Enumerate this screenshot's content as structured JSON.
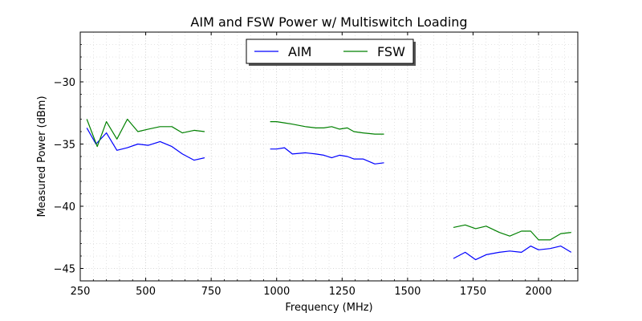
{
  "chart_data": {
    "type": "line",
    "title": "AIM and FSW Power w/ Multiswitch Loading",
    "xlabel": "Frequency (MHz)",
    "ylabel": "Measured Power (dBm)",
    "xlim": [
      250,
      2150
    ],
    "ylim": [
      -46,
      -26
    ],
    "xticks": [
      250,
      500,
      750,
      1000,
      1250,
      1500,
      1750,
      2000
    ],
    "xtick_labels": [
      "250",
      "500",
      "750",
      "1000",
      "1250",
      "1500",
      "1750",
      "2000"
    ],
    "yticks": [
      -45,
      -40,
      -35,
      -30
    ],
    "ytick_labels": [
      "−45",
      "−40",
      "−35",
      "−30"
    ],
    "grid": true,
    "legend_position": "top-center",
    "series": [
      {
        "name": "AIM",
        "color": "#0000ff",
        "segments": [
          {
            "x": [
              275,
              310,
              350,
              390,
              430,
              470,
              510,
              555,
              600,
              640,
              685,
              725
            ],
            "y": [
              -33.7,
              -35.0,
              -34.1,
              -35.5,
              -35.3,
              -35.0,
              -35.1,
              -34.8,
              -35.2,
              -35.8,
              -36.3,
              -36.1
            ]
          },
          {
            "x": [
              975,
              1000,
              1030,
              1060,
              1110,
              1150,
              1180,
              1210,
              1240,
              1270,
              1295,
              1330,
              1375,
              1410
            ],
            "y": [
              -35.4,
              -35.4,
              -35.3,
              -35.8,
              -35.7,
              -35.8,
              -35.9,
              -36.1,
              -35.9,
              -36.0,
              -36.2,
              -36.2,
              -36.6,
              -36.5
            ]
          },
          {
            "x": [
              1675,
              1720,
              1760,
              1800,
              1850,
              1890,
              1935,
              1970,
              2000,
              2045,
              2085,
              2125
            ],
            "y": [
              -44.2,
              -43.7,
              -44.3,
              -43.9,
              -43.7,
              -43.6,
              -43.7,
              -43.2,
              -43.5,
              -43.4,
              -43.2,
              -43.7
            ]
          }
        ]
      },
      {
        "name": "FSW",
        "color": "#008000",
        "segments": [
          {
            "x": [
              275,
              315,
              350,
              390,
              430,
              470,
              510,
              555,
              600,
              640,
              685,
              725
            ],
            "y": [
              -33.0,
              -35.2,
              -33.2,
              -34.6,
              -33.0,
              -34.0,
              -33.8,
              -33.6,
              -33.6,
              -34.1,
              -33.9,
              -34.0
            ]
          },
          {
            "x": [
              975,
              1000,
              1030,
              1060,
              1110,
              1150,
              1180,
              1210,
              1240,
              1270,
              1295,
              1330,
              1375,
              1410
            ],
            "y": [
              -33.2,
              -33.2,
              -33.3,
              -33.4,
              -33.6,
              -33.7,
              -33.7,
              -33.6,
              -33.8,
              -33.7,
              -34.0,
              -34.1,
              -34.2,
              -34.2
            ]
          },
          {
            "x": [
              1675,
              1720,
              1760,
              1800,
              1850,
              1890,
              1935,
              1970,
              2000,
              2045,
              2085,
              2125
            ],
            "y": [
              -41.7,
              -41.5,
              -41.8,
              -41.6,
              -42.1,
              -42.4,
              -42.0,
              -42.0,
              -42.7,
              -42.7,
              -42.2,
              -42.1
            ]
          }
        ]
      }
    ]
  }
}
